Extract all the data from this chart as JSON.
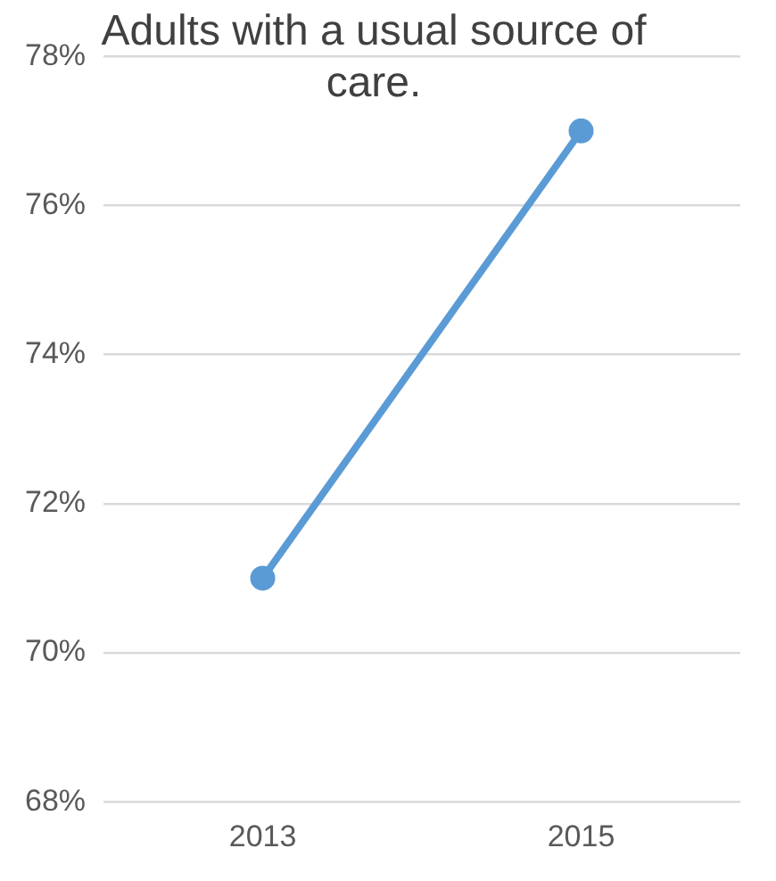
{
  "chart_data": {
    "type": "line",
    "title": "Adults with a usual source of care.",
    "categories": [
      "2013",
      "2015"
    ],
    "series": [
      {
        "color": "#5b9bd5",
        "values": [
          71,
          77
        ]
      }
    ],
    "ylim": [
      68,
      78
    ],
    "yticks": [
      {
        "value": 68,
        "label": "68%"
      },
      {
        "value": 70,
        "label": "70%"
      },
      {
        "value": 72,
        "label": "72%"
      },
      {
        "value": 74,
        "label": "74%"
      },
      {
        "value": 76,
        "label": "76%"
      },
      {
        "value": 78,
        "label": "78%"
      }
    ],
    "grid": "y",
    "legend": false,
    "marker": "circle",
    "line_style": "solid"
  }
}
